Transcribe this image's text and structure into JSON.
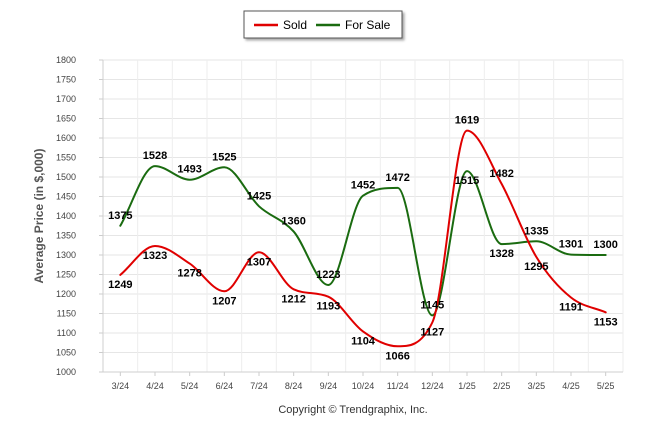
{
  "chart_data": {
    "type": "line",
    "categories": [
      "3/24",
      "4/24",
      "5/24",
      "6/24",
      "7/24",
      "8/24",
      "9/24",
      "10/24",
      "11/24",
      "12/24",
      "1/25",
      "2/25",
      "3/25",
      "4/25",
      "5/25"
    ],
    "series": [
      {
        "name": "Sold",
        "color": "#e00000",
        "values": [
          1249,
          1323,
          1278,
          1207,
          1307,
          1212,
          1193,
          1104,
          1066,
          1127,
          1619,
          1482,
          1295,
          1191,
          1153
        ]
      },
      {
        "name": "For Sale",
        "color": "#1a6b10",
        "values": [
          1375,
          1528,
          1493,
          1525,
          1425,
          1360,
          1223,
          1452,
          1472,
          1145,
          1515,
          1328,
          1335,
          1301,
          1300
        ]
      }
    ],
    "ylabel": "Average Price (in $,000)",
    "xlabel": "",
    "ylim": [
      1000,
      1800
    ],
    "yticks": [
      "1000",
      "1050",
      "1100",
      "1150",
      "1200",
      "1250",
      "1300",
      "1350",
      "1400",
      "1450",
      "1500",
      "1550",
      "1600",
      "1650",
      "1700",
      "1750",
      "1800"
    ],
    "grid": true,
    "legend_position": "top-center",
    "credit": "Copyright © Trendgraphix, Inc."
  }
}
